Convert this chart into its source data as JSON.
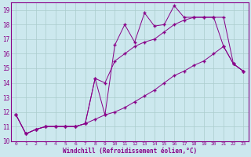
{
  "xlabel": "Windchill (Refroidissement éolien,°C)",
  "background_color": "#cce8ee",
  "grid_color": "#aacccc",
  "line_color": "#880088",
  "x_hours": [
    0,
    1,
    2,
    3,
    4,
    5,
    6,
    7,
    8,
    9,
    10,
    11,
    12,
    13,
    14,
    15,
    16,
    17,
    18,
    19,
    20,
    21,
    22,
    23
  ],
  "line1": [
    11.8,
    10.5,
    10.8,
    11.0,
    11.0,
    11.0,
    11.0,
    11.2,
    14.3,
    11.8,
    16.6,
    18.0,
    16.8,
    18.8,
    17.9,
    18.0,
    19.3,
    18.5,
    18.5,
    18.5,
    18.5,
    16.5,
    15.3,
    14.8
  ],
  "line2": [
    11.8,
    10.5,
    10.8,
    11.0,
    11.0,
    11.0,
    11.0,
    11.2,
    14.3,
    14.0,
    15.5,
    16.0,
    16.5,
    16.8,
    17.0,
    17.5,
    18.0,
    18.3,
    18.5,
    18.5,
    18.5,
    18.5,
    15.3,
    14.8
  ],
  "line3": [
    11.8,
    10.5,
    10.8,
    11.0,
    11.0,
    11.0,
    11.0,
    11.2,
    11.5,
    11.8,
    12.0,
    12.3,
    12.7,
    13.1,
    13.5,
    14.0,
    14.5,
    14.8,
    15.2,
    15.5,
    16.0,
    16.5,
    15.3,
    14.8
  ],
  "ylim": [
    10,
    19.5
  ],
  "xlim": [
    -0.5,
    23.5
  ],
  "yticks": [
    10,
    11,
    12,
    13,
    14,
    15,
    16,
    17,
    18,
    19
  ],
  "xticks": [
    0,
    1,
    2,
    3,
    4,
    5,
    6,
    7,
    8,
    9,
    10,
    11,
    12,
    13,
    14,
    15,
    16,
    17,
    18,
    19,
    20,
    21,
    22,
    23
  ]
}
